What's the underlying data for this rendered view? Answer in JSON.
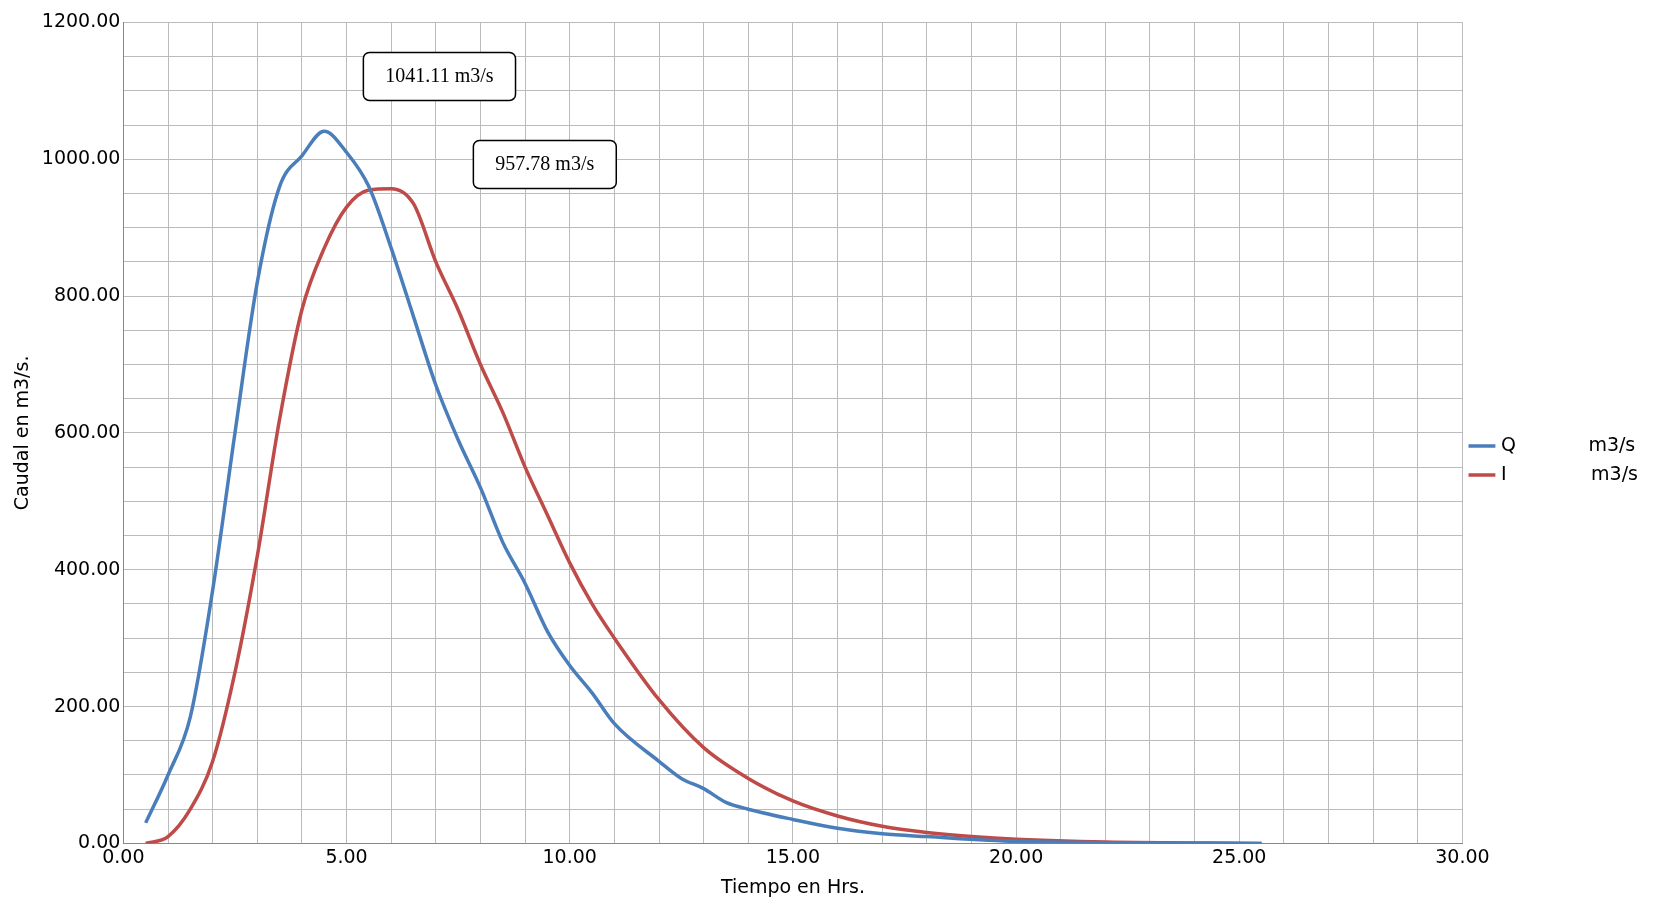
{
  "chart_data": {
    "type": "line",
    "xlabel": "Tiempo en Hrs.",
    "ylabel": "Caudal en m3/s.",
    "annotations": [
      "1041.11 m3/s",
      "957.78 m3/s"
    ],
    "series": [
      {
        "name": "Q            m3/s",
        "color": "#4a7ebb",
        "x": [
          0.5,
          1,
          1.5,
          2,
          2.5,
          3,
          3.5,
          4,
          4.5,
          5,
          5.5,
          6,
          6.5,
          7,
          7.5,
          8,
          8.5,
          9,
          9.5,
          10,
          10.5,
          11,
          12,
          12.5,
          13,
          13.5,
          14,
          15,
          16,
          17,
          18,
          20,
          22,
          25.5
        ],
        "values": [
          30,
          100,
          185,
          370,
          600,
          820,
          960,
          1005,
          1041,
          1010,
          960,
          870,
          770,
          670,
          590,
          520,
          440,
          380,
          310,
          260,
          220,
          175,
          120,
          95,
          80,
          60,
          50,
          35,
          22,
          14,
          10,
          3,
          1,
          0
        ]
      },
      {
        "name": "I              m3/s",
        "color": "#be4b48",
        "x": [
          0.5,
          1,
          1.5,
          2,
          2.5,
          3,
          3.5,
          4,
          4.5,
          5,
          5.5,
          6,
          6.5,
          7,
          7.5,
          8,
          8.5,
          9,
          9.5,
          10,
          10.5,
          11,
          12,
          13,
          14,
          15,
          16,
          17,
          18,
          19,
          20,
          22,
          25.5
        ],
        "values": [
          0,
          10,
          50,
          120,
          250,
          420,
          620,
          780,
          870,
          930,
          955,
          957,
          935,
          850,
          780,
          700,
          630,
          550,
          480,
          410,
          350,
          300,
          210,
          140,
          95,
          62,
          40,
          25,
          16,
          10,
          6,
          2,
          0
        ]
      }
    ],
    "xlim": [
      0,
      30
    ],
    "xticks": [
      {
        "value": 0,
        "label": "0.00"
      },
      {
        "value": 5,
        "label": "5.00"
      },
      {
        "value": 10,
        "label": "10.00"
      },
      {
        "value": 15,
        "label": "15.00"
      },
      {
        "value": 20,
        "label": "20.00"
      },
      {
        "value": 25,
        "label": "25.00"
      },
      {
        "value": 30,
        "label": "30.00"
      }
    ],
    "ylim": [
      0,
      1200
    ],
    "yticks": [
      {
        "value": 0,
        "label": "0.00"
      },
      {
        "value": 200,
        "label": "200.00"
      },
      {
        "value": 400,
        "label": "400.00"
      },
      {
        "value": 600,
        "label": "600.00"
      },
      {
        "value": 800,
        "label": "800.00"
      },
      {
        "value": 1000,
        "label": "1000.00"
      },
      {
        "value": 1200,
        "label": "1200.00"
      }
    ],
    "grid": true,
    "legend": "right",
    "marker": "none",
    "line_style": "solid"
  }
}
